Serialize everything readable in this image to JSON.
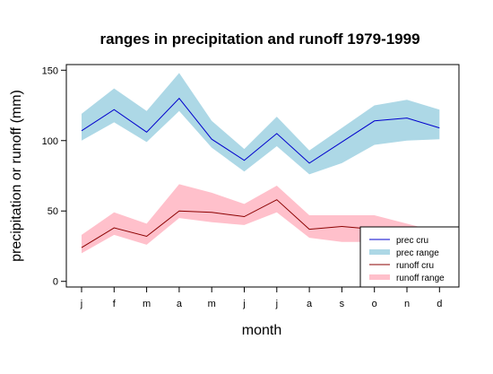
{
  "chart_data": {
    "type": "area",
    "title": "ranges in precipitation and runoff 1979-1999",
    "xlabel": "month",
    "ylabel": "precipitation or runoff (mm)",
    "categories": [
      "j",
      "f",
      "m",
      "a",
      "m",
      "j",
      "j",
      "a",
      "s",
      "o",
      "n",
      "d"
    ],
    "yticks": [
      0,
      50,
      100,
      150
    ],
    "ylim": [
      -4,
      154
    ],
    "grid": false,
    "legend_position": "bottom-right",
    "series": [
      {
        "name": "prec cru",
        "kind": "line",
        "color": "#0000cd",
        "values": [
          107,
          122,
          106,
          130,
          101,
          86,
          105,
          84,
          99,
          114,
          116,
          109
        ]
      },
      {
        "name": "prec range",
        "kind": "band",
        "color": "#add8e6",
        "low": [
          100,
          113,
          99,
          121,
          95,
          78,
          96,
          76,
          84,
          97,
          100,
          101
        ],
        "high": [
          119,
          137,
          121,
          148,
          114,
          94,
          117,
          93,
          109,
          125,
          129,
          122
        ]
      },
      {
        "name": "runoff cru",
        "kind": "line",
        "color": "#8b0000",
        "values": [
          24,
          38,
          32,
          50,
          49,
          46,
          58,
          37,
          39,
          37,
          33,
          28
        ]
      },
      {
        "name": "runoff range",
        "kind": "band",
        "color": "#ffc0cb",
        "low": [
          20,
          33,
          26,
          45,
          42,
          40,
          49,
          31,
          28,
          28,
          24,
          22
        ],
        "high": [
          33,
          49,
          41,
          69,
          63,
          55,
          68,
          47,
          47,
          47,
          41,
          35
        ]
      }
    ]
  }
}
